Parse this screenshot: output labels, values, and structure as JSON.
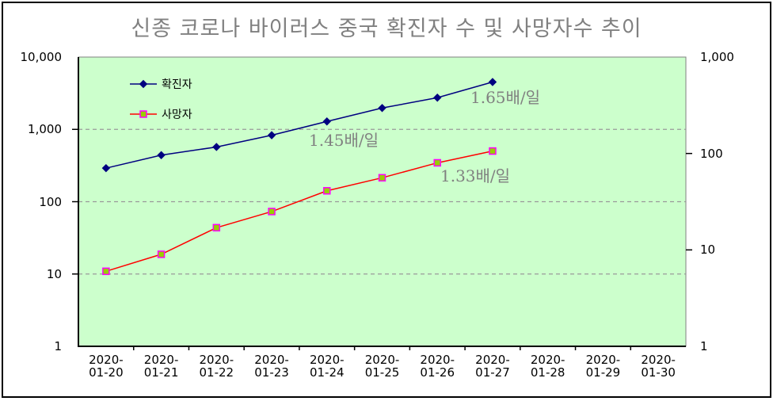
{
  "window": {
    "background_color": "#FFFFFF",
    "border_color": "#000000"
  },
  "chart_data": {
    "type": "line",
    "title": "신종 코로나 바이러스 중국 확진자 수 및 사망자수 추이",
    "title_color": "#808080",
    "plot_bg_color": "#CCFFCC",
    "plot_border_color": "#808080",
    "axis_line_color": "#000000",
    "gridline_color": "#999999",
    "grid_style": "dashed-horizontal",
    "legend_position": "top-left-inside",
    "x_categories": [
      "2020-01-20",
      "2020-01-21",
      "2020-01-22",
      "2020-01-23",
      "2020-01-24",
      "2020-01-25",
      "2020-01-26",
      "2020-01-27",
      "2020-01-28",
      "2020-01-29",
      "2020-01-30"
    ],
    "left_axis": {
      "scale": "log",
      "min": 1,
      "max": 10000,
      "ticks": [
        10000,
        1000,
        100,
        10,
        1
      ],
      "tick_labels": [
        "10,000",
        "1,000",
        "100",
        "10",
        "1"
      ]
    },
    "right_axis": {
      "scale": "log",
      "min": 1,
      "max": 1000,
      "ticks": [
        1000,
        100,
        10,
        1
      ],
      "tick_labels": [
        "1,000",
        "100",
        "10",
        "1"
      ]
    },
    "series": [
      {
        "name": "확진자",
        "axis": "left",
        "line_color": "#000080",
        "marker": "diamond",
        "marker_fill": "#000080",
        "marker_stroke": "#000080",
        "values": [
          291,
          440,
          571,
          830,
          1287,
          1975,
          2744,
          4515
        ]
      },
      {
        "name": "사망자",
        "axis": "right",
        "line_color": "#FF0000",
        "marker": "square",
        "marker_fill": "#99CC00",
        "marker_stroke": "#FF00FF",
        "values": [
          6,
          9,
          17,
          25,
          41,
          56,
          80,
          106
        ]
      }
    ],
    "annotation_color": "#808080",
    "annotations": [
      {
        "text": "1.65배/일",
        "refers_to": "확진자"
      },
      {
        "text": "1.45배/일",
        "refers_to": "확진자"
      },
      {
        "text": "1.33배/일",
        "refers_to": "사망자"
      }
    ]
  }
}
